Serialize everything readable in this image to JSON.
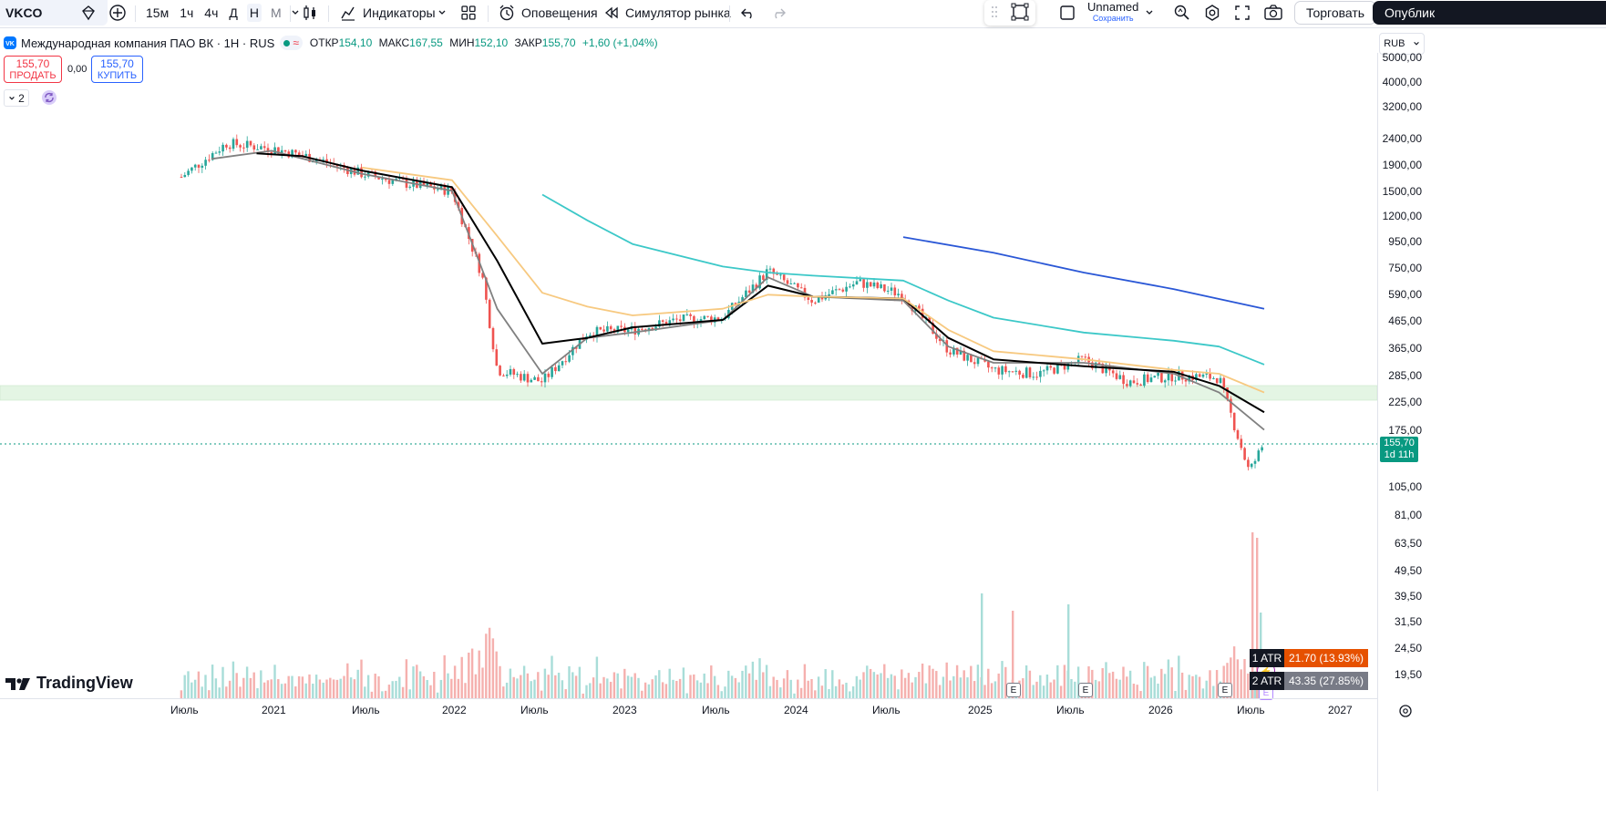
{
  "toolbar": {
    "symbol": "VKCO",
    "timeframes": [
      "15м",
      "1ч",
      "4ч",
      "Д",
      "Н",
      "М"
    ],
    "active_timeframe": "Н",
    "indicators_label": "Индикаторы",
    "alerts_label": "Оповещения",
    "replay_label": "Симулятор рынка",
    "layout_name": "Unnamed",
    "layout_save": "Сохранить",
    "trade_label": "Торговать",
    "publish_label": "Опублик"
  },
  "legend": {
    "title": "Международная компания ПАО ВК · 1Н · RUS",
    "open_label": "ОТКР",
    "open": "154,10",
    "high_label": "МАКС",
    "high": "167,55",
    "low_label": "МИН",
    "low": "152,10",
    "close_label": "ЗАКР",
    "close": "155,70",
    "change": "+1,60 (+1,04%)",
    "sell_price": "155,70",
    "sell_label": "ПРОДАТЬ",
    "spread": "0,00",
    "buy_price": "155,70",
    "buy_label": "КУПИТЬ",
    "collapsed_count": "2"
  },
  "price_axis": {
    "currency": "RUB",
    "labels": [
      "5000,00",
      "4000,00",
      "3200,00",
      "2400,00",
      "1900,00",
      "1500,00",
      "1200,00",
      "950,00",
      "750,00",
      "590,00",
      "465,00",
      "365,00",
      "285,00",
      "225,00",
      "175,00",
      "105,00",
      "81,00",
      "63,50",
      "49,50",
      "39,50",
      "31,50",
      "24,50",
      "19,50"
    ],
    "current_price": "155,70",
    "countdown": "1d 11h"
  },
  "time_axis": {
    "labels": [
      "Июль",
      "2021",
      "Июль",
      "2022",
      "Июль",
      "2023",
      "Июль",
      "2024",
      "Июль",
      "2025",
      "Июль",
      "2026",
      "Июль",
      "2027"
    ]
  },
  "atr": {
    "row1_label": "1 ATR",
    "row1_value": "21.70 (13.93%)",
    "row2_label": "2 ATR",
    "row2_value": "43.35 (27.85%)"
  },
  "earnings_marker": "E",
  "brand": "TradingView",
  "colors": {
    "up": "#26a69a",
    "down": "#ef5350",
    "ma_gray": "#808080",
    "ma_black": "#000000",
    "ma_orange": "#f7c980",
    "ma_teal": "#3cc8c8",
    "ma_blue": "#2a57d6",
    "zone": "#e1f5e1",
    "price_badge": "#089981"
  },
  "chart_data": {
    "type": "candlestick",
    "scale": "log",
    "ylim": [
      19.5,
      5000
    ],
    "x": [
      "2020-07",
      "2020-10",
      "2021-01",
      "2021-04",
      "2021-07",
      "2021-10",
      "2022-01",
      "2022-03",
      "2022-04",
      "2022-07",
      "2022-10",
      "2023-01",
      "2023-04",
      "2023-07",
      "2023-10",
      "2024-01",
      "2024-04",
      "2024-07",
      "2024-10",
      "2025-01",
      "2025-04",
      "2025-07",
      "2025-10",
      "2026-01",
      "2026-04",
      "2026-06",
      "2026-07"
    ],
    "close": [
      1700,
      2300,
      2200,
      2000,
      1750,
      1600,
      1500,
      700,
      300,
      270,
      420,
      430,
      470,
      480,
      730,
      560,
      660,
      590,
      360,
      300,
      290,
      330,
      270,
      285,
      280,
      120,
      155.7
    ],
    "series": [
      {
        "name": "",
        "type": "line",
        "color": "#808080",
        "x": [
          "2020-09",
          "2021-01",
          "2021-07",
          "2022-01",
          "2022-04",
          "2022-07",
          "2022-10",
          "2023-01",
          "2023-07",
          "2023-10",
          "2024-01",
          "2024-07",
          "2024-10",
          "2025-01",
          "2025-07",
          "2026-01",
          "2026-04",
          "2026-07"
        ],
        "y": [
          2000,
          2150,
          1750,
          1500,
          520,
          290,
          400,
          420,
          470,
          690,
          580,
          560,
          370,
          320,
          320,
          290,
          245,
          175
        ]
      },
      {
        "name": "",
        "type": "line",
        "color": "#000000",
        "x": [
          "2020-12",
          "2021-03",
          "2021-07",
          "2022-01",
          "2022-04",
          "2022-07",
          "2022-10",
          "2023-01",
          "2023-07",
          "2023-10",
          "2024-01",
          "2024-07",
          "2024-10",
          "2025-01",
          "2025-07",
          "2026-01",
          "2026-04",
          "2026-07"
        ],
        "y": [
          2100,
          2050,
          1800,
          1550,
          800,
          380,
          400,
          440,
          470,
          640,
          580,
          570,
          400,
          330,
          310,
          295,
          260,
          205
        ]
      },
      {
        "name": "",
        "type": "line",
        "color": "#f7c980",
        "x": [
          "2021-07",
          "2022-01",
          "2022-04",
          "2022-07",
          "2022-10",
          "2023-01",
          "2023-07",
          "2023-10",
          "2024-01",
          "2024-07",
          "2024-10",
          "2025-01",
          "2025-07",
          "2026-01",
          "2026-04",
          "2026-07"
        ],
        "y": [
          1850,
          1650,
          1000,
          600,
          530,
          490,
          520,
          590,
          580,
          570,
          430,
          355,
          330,
          300,
          290,
          245
        ]
      },
      {
        "name": "",
        "type": "line",
        "color": "#3cc8c8",
        "x": [
          "2022-07",
          "2022-10",
          "2023-01",
          "2023-07",
          "2023-10",
          "2024-01",
          "2024-07",
          "2024-10",
          "2025-01",
          "2025-07",
          "2026-01",
          "2026-04",
          "2026-07"
        ],
        "y": [
          1450,
          1150,
          930,
          760,
          720,
          700,
          670,
          560,
          480,
          420,
          390,
          370,
          315
        ]
      },
      {
        "name": "",
        "type": "line",
        "color": "#2a57d6",
        "x": [
          "2024-07",
          "2025-01",
          "2025-07",
          "2026-01",
          "2026-07"
        ],
        "y": [
          990,
          860,
          720,
          620,
          520
        ]
      }
    ],
    "zone": [
      235,
      265
    ],
    "volume_note": "volume histogram at bottom, peaks near 2025 and 2026-07"
  }
}
